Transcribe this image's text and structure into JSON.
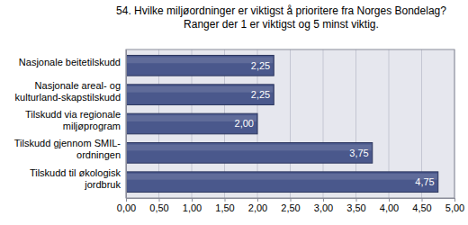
{
  "chart_data": {
    "type": "bar",
    "orientation": "horizontal",
    "title": "54. Hvilke miljøordninger er viktigst å prioritere fra Norges Bondelag? Ranger der 1 er viktigst og 5 minst viktig.",
    "categories": [
      "Nasjonale beitetilskudd",
      "Nasjonale areal- og kulturland-skapstilskudd",
      "Tilskudd via regionale miljøprogram",
      "Tilskudd gjennom SMIL-ordningen",
      "Tilskudd til økologisk jordbruk"
    ],
    "values": [
      2.25,
      2.25,
      2.0,
      3.75,
      4.75
    ],
    "value_labels": [
      "2,25",
      "2,25",
      "2,00",
      "3,75",
      "4,75"
    ],
    "data_labels": true,
    "color": "#4a588c",
    "xlim": [
      0,
      5
    ],
    "xticks": [
      {
        "value": 0,
        "label": "0,00"
      },
      {
        "value": 0.5,
        "label": "0,50"
      },
      {
        "value": 1,
        "label": "1,00"
      },
      {
        "value": 1.5,
        "label": "1,50"
      },
      {
        "value": 2,
        "label": "2,00"
      },
      {
        "value": 2.5,
        "label": "2,50"
      },
      {
        "value": 3,
        "label": "3,00"
      },
      {
        "value": 3.5,
        "label": "3,50"
      },
      {
        "value": 4,
        "label": "4,00"
      },
      {
        "value": 4.5,
        "label": "4,50"
      },
      {
        "value": 5,
        "label": "5,00"
      }
    ],
    "grid": true
  }
}
